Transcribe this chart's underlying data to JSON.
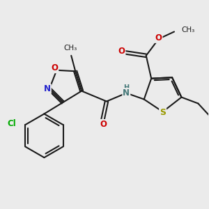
{
  "bg_color": "#ebebeb",
  "bond_color": "#1a1a1a",
  "bond_width": 1.5,
  "atom_colors": {
    "O": "#cc0000",
    "N_blue": "#2222cc",
    "N_teal": "#447777",
    "S": "#999900",
    "Cl": "#00aa00",
    "C": "#1a1a1a"
  },
  "figsize": [
    3.0,
    3.0
  ],
  "dpi": 100,
  "xlim": [
    0,
    10
  ],
  "ylim": [
    0,
    10
  ]
}
